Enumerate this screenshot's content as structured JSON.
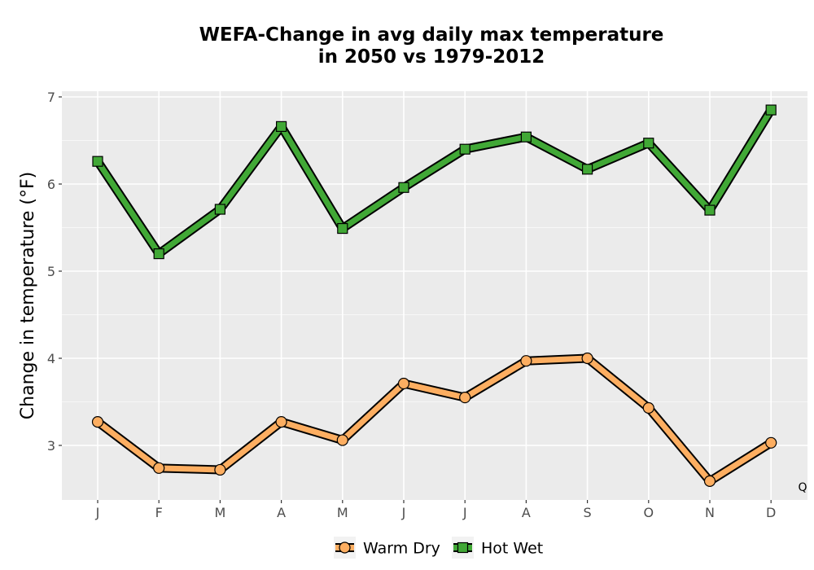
{
  "chart_data": {
    "type": "line",
    "title": "WEFA-Change in avg daily max temperature",
    "subtitle": "in 2050 vs 1979-2012",
    "xlabel": "",
    "ylabel": "Change in temperature (°F)",
    "categories": [
      "J",
      "F",
      "M",
      "A",
      "M",
      "J",
      "J",
      "A",
      "S",
      "O",
      "N",
      "D"
    ],
    "ylim": [
      2.4,
      7.05
    ],
    "yticks": [
      3,
      4,
      5,
      6,
      7
    ],
    "grid": true,
    "legend_position": "bottom",
    "series": [
      {
        "name": "Warm Dry",
        "marker": "circle",
        "color": "#FDAE61",
        "values": [
          3.27,
          2.74,
          2.72,
          3.27,
          3.06,
          3.71,
          3.55,
          3.97,
          4.0,
          3.43,
          2.59,
          3.03
        ]
      },
      {
        "name": "Hot Wet",
        "marker": "square",
        "color": "#41A836",
        "values": [
          6.26,
          5.2,
          5.71,
          6.66,
          5.49,
          5.96,
          6.4,
          6.54,
          6.17,
          6.47,
          5.7,
          6.85
        ]
      }
    ],
    "annotation": "Q"
  }
}
